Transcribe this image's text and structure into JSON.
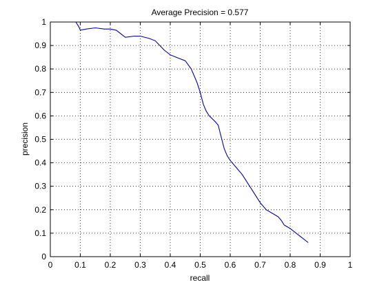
{
  "chart_data": {
    "type": "line",
    "title": "Average Precision = 0.577",
    "xlabel": "recall",
    "ylabel": "precision",
    "xlim": [
      0,
      1
    ],
    "ylim": [
      0,
      1
    ],
    "xticks": [
      0,
      0.1,
      0.2,
      0.3,
      0.4,
      0.5,
      0.6,
      0.7,
      0.8,
      0.9,
      1
    ],
    "yticks": [
      0,
      0.1,
      0.2,
      0.3,
      0.4,
      0.5,
      0.6,
      0.7,
      0.8,
      0.9,
      1
    ],
    "xtick_labels": [
      "0",
      "0.1",
      "0.2",
      "0.3",
      "0.4",
      "0.5",
      "0.6",
      "0.7",
      "0.8",
      "0.9",
      "1"
    ],
    "ytick_labels": [
      "0",
      "0.1",
      "0.2",
      "0.3",
      "0.4",
      "0.5",
      "0.6",
      "0.7",
      "0.8",
      "0.9",
      "1"
    ],
    "grid": true,
    "grid_style": "dotted",
    "line_color": "#0000a0",
    "series": [
      {
        "x": [
          0.085,
          0.09,
          0.095,
          0.1,
          0.12,
          0.15,
          0.18,
          0.2,
          0.22,
          0.25,
          0.28,
          0.3,
          0.33,
          0.35,
          0.38,
          0.4,
          0.42,
          0.45,
          0.47,
          0.48,
          0.49,
          0.5,
          0.51,
          0.52,
          0.53,
          0.55,
          0.56,
          0.57,
          0.58,
          0.59,
          0.6,
          0.62,
          0.64,
          0.66,
          0.68,
          0.7,
          0.72,
          0.74,
          0.76,
          0.77,
          0.78,
          0.8,
          0.82,
          0.84,
          0.86
        ],
        "y": [
          1.0,
          0.99,
          0.98,
          0.965,
          0.97,
          0.975,
          0.97,
          0.97,
          0.965,
          0.935,
          0.94,
          0.94,
          0.93,
          0.92,
          0.88,
          0.86,
          0.85,
          0.835,
          0.8,
          0.77,
          0.74,
          0.7,
          0.65,
          0.62,
          0.6,
          0.575,
          0.56,
          0.51,
          0.46,
          0.43,
          0.41,
          0.38,
          0.35,
          0.31,
          0.27,
          0.23,
          0.2,
          0.185,
          0.17,
          0.155,
          0.135,
          0.12,
          0.1,
          0.08,
          0.06
        ]
      }
    ]
  }
}
